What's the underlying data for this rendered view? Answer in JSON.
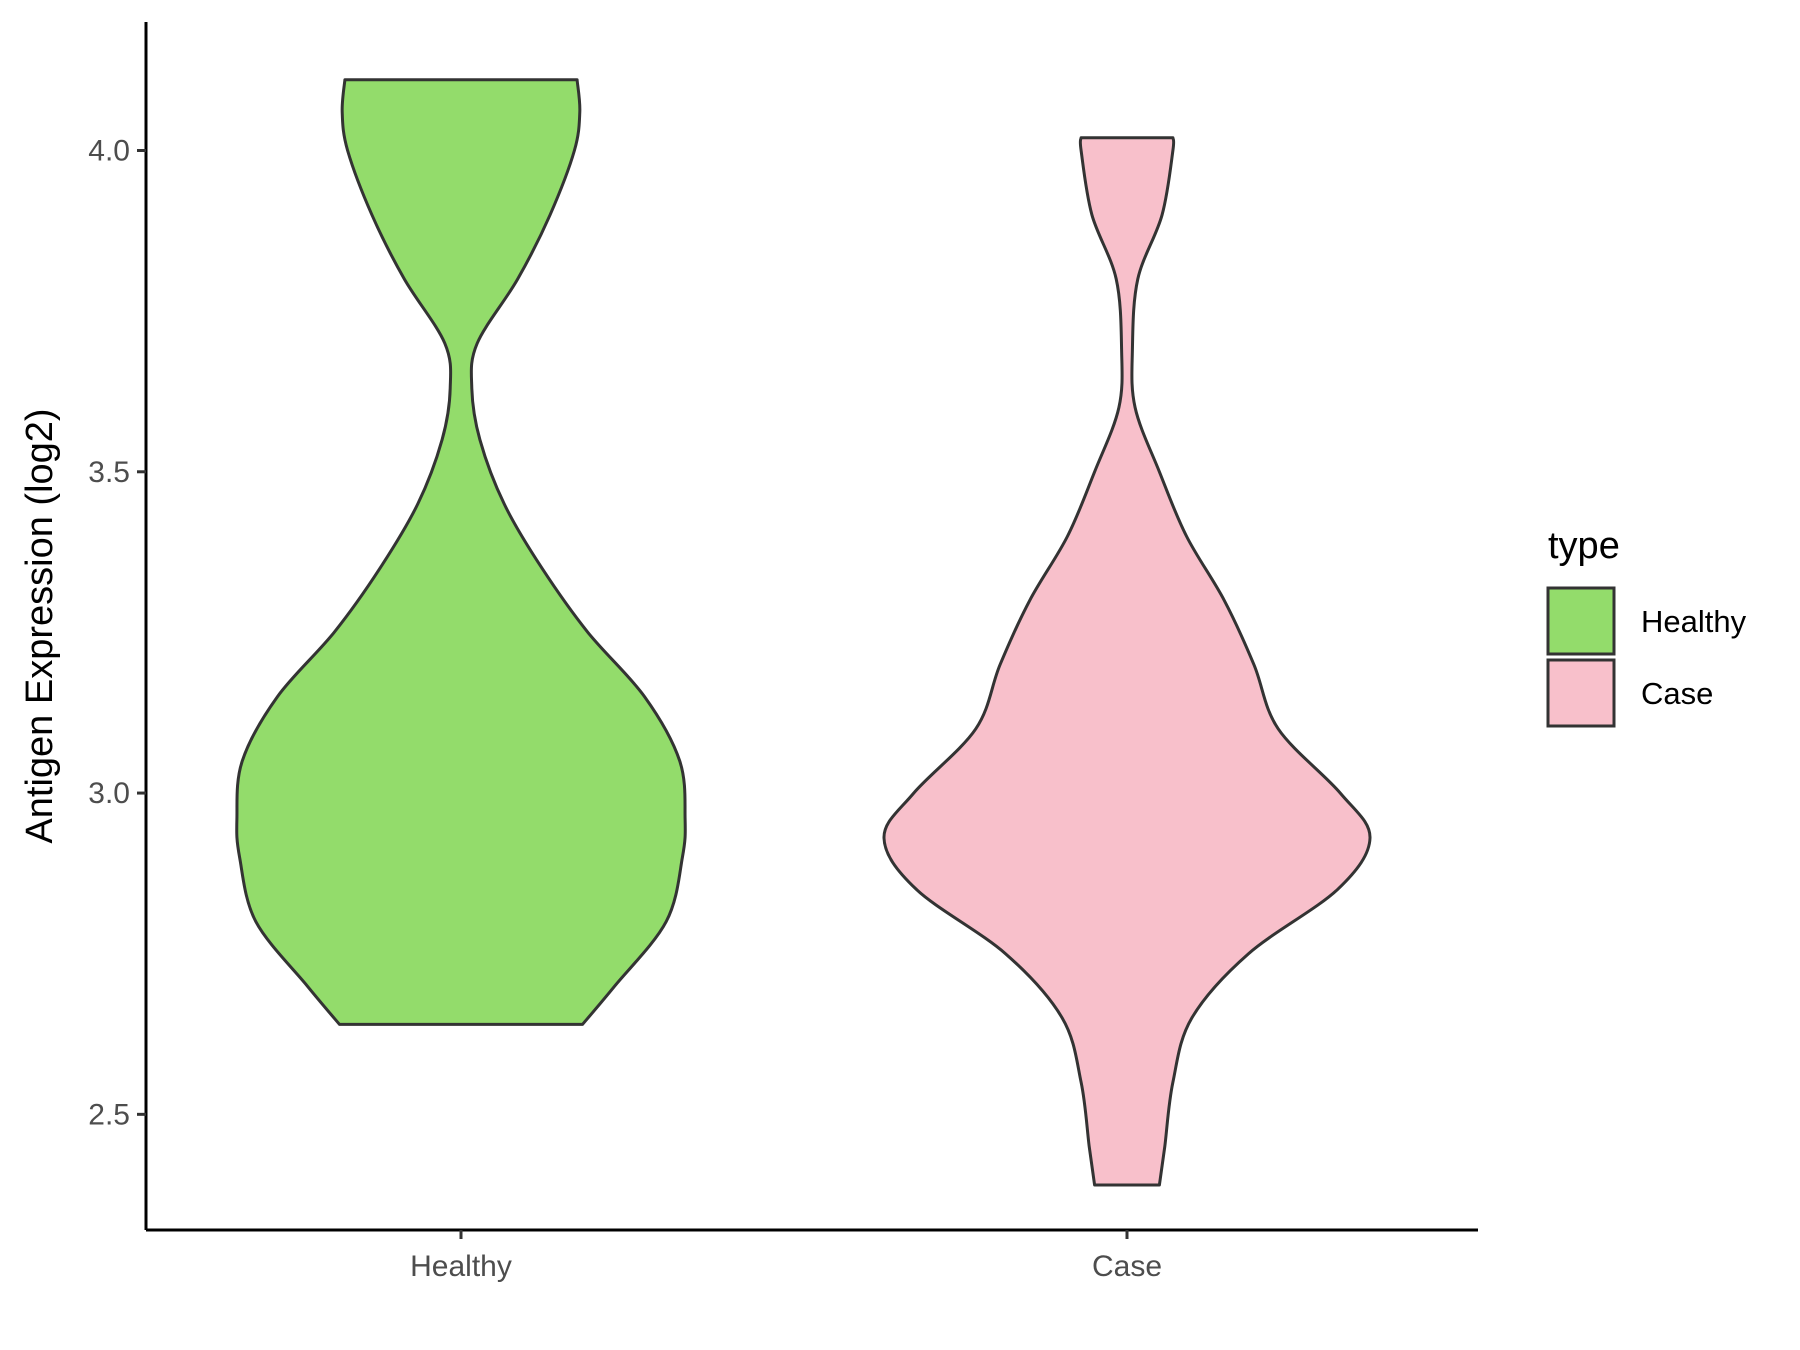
{
  "chart_data": {
    "type": "violin",
    "ylabel": "Antigen Expression (log2)",
    "xlabel": "",
    "ylim": [
      2.32,
      4.2
    ],
    "yticks": [
      2.5,
      3.0,
      3.5,
      4.0
    ],
    "ytick_labels": [
      "2.5",
      "3.0",
      "3.5",
      "4.0"
    ],
    "categories": [
      "Healthy",
      "Case"
    ],
    "grid": false,
    "legend": {
      "title": "type",
      "position": "right",
      "entries": [
        {
          "label": "Healthy",
          "color": "#93dc6b"
        },
        {
          "label": "Case",
          "color": "#f8c0cb"
        }
      ]
    },
    "series": [
      {
        "category": "Healthy",
        "color": "#93dc6b",
        "min": 2.64,
        "max": 4.11,
        "density": [
          [
            2.64,
            0.45
          ],
          [
            2.7,
            0.57
          ],
          [
            2.8,
            0.76
          ],
          [
            2.9,
            0.82
          ],
          [
            2.96,
            0.83
          ],
          [
            3.05,
            0.81
          ],
          [
            3.15,
            0.68
          ],
          [
            3.25,
            0.47
          ],
          [
            3.35,
            0.3
          ],
          [
            3.45,
            0.16
          ],
          [
            3.55,
            0.07
          ],
          [
            3.63,
            0.04
          ],
          [
            3.7,
            0.06
          ],
          [
            3.8,
            0.21
          ],
          [
            3.9,
            0.33
          ],
          [
            4.0,
            0.42
          ],
          [
            4.06,
            0.44
          ],
          [
            4.11,
            0.43
          ]
        ]
      },
      {
        "category": "Case",
        "color": "#f8c0cb",
        "min": 2.39,
        "max": 4.02,
        "density": [
          [
            2.39,
            0.12
          ],
          [
            2.45,
            0.14
          ],
          [
            2.55,
            0.17
          ],
          [
            2.65,
            0.24
          ],
          [
            2.75,
            0.45
          ],
          [
            2.85,
            0.78
          ],
          [
            2.93,
            0.9
          ],
          [
            3.0,
            0.79
          ],
          [
            3.1,
            0.56
          ],
          [
            3.2,
            0.47
          ],
          [
            3.3,
            0.36
          ],
          [
            3.4,
            0.22
          ],
          [
            3.5,
            0.12
          ],
          [
            3.6,
            0.03
          ],
          [
            3.69,
            0.02
          ],
          [
            3.8,
            0.04
          ],
          [
            3.9,
            0.13
          ],
          [
            4.0,
            0.17
          ],
          [
            4.02,
            0.17
          ]
        ]
      }
    ]
  }
}
